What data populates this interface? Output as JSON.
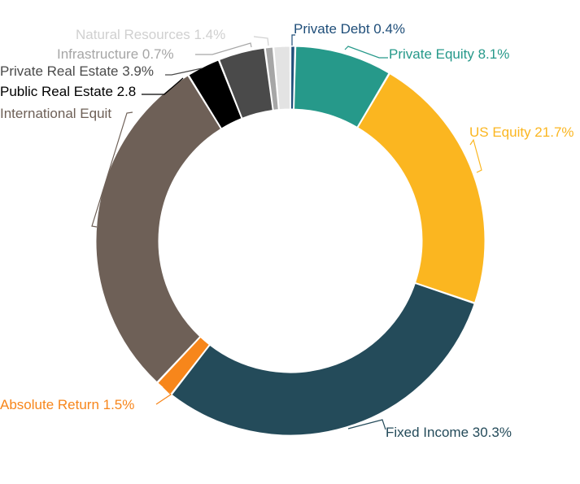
{
  "chart_data": {
    "type": "pie",
    "style": "donut",
    "title": "",
    "legend": "none",
    "slices": [
      {
        "key": "private-debt",
        "label": "Private Debt",
        "value": 0.4,
        "display": "Private Debt 0.4%",
        "color": "#1f4e79"
      },
      {
        "key": "private-equity",
        "label": "Private Equity",
        "value": 8.1,
        "display": "Private Equity 8.1%",
        "color": "#26998a"
      },
      {
        "key": "us-equity",
        "label": "US Equity",
        "value": 21.7,
        "display": "US Equity 21.7%",
        "color": "#fbb620"
      },
      {
        "key": "fixed-income",
        "label": "Fixed Income",
        "value": 30.3,
        "display": "Fixed Income 30.3%",
        "color": "#244b5a"
      },
      {
        "key": "absolute-return",
        "label": "Absolute Return",
        "value": 1.5,
        "display": "Absolute Return 1.5%",
        "color": "#f7861b"
      },
      {
        "key": "international-equity",
        "label": "International Equity",
        "value": 29.2,
        "display": "International Equit",
        "color": "#6e6057"
      },
      {
        "key": "public-real-estate",
        "label": "Public Real Estate",
        "value": 2.8,
        "display": "Public Real Estate 2.8",
        "color": "#000000"
      },
      {
        "key": "private-real-estate",
        "label": "Private Real Estate",
        "value": 3.9,
        "display": "Private Real Estate 3.9%",
        "color": "#4a4a4a"
      },
      {
        "key": "infrastructure",
        "label": "Infrastructure",
        "value": 0.7,
        "display": "Infrastructure 0.7%",
        "color": "#a6a6a6"
      },
      {
        "key": "natural-resources",
        "label": "Natural Resources",
        "value": 1.4,
        "display": "Natural Resources 1.4%",
        "color": "#e3e3e3"
      }
    ]
  }
}
